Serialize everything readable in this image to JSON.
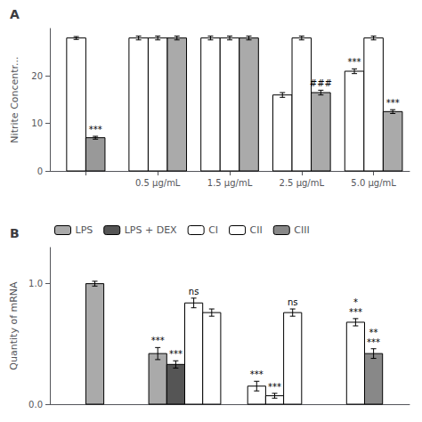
{
  "chart_data": [
    {
      "type": "bar",
      "title": "A",
      "ylabel": "Nitrite Concentr...",
      "categories": [
        null,
        "0.5 µg/mL",
        "1.5 µg/mL",
        "2.5 µg/mL",
        "5.0 µg/mL"
      ],
      "ylim": [
        0,
        30
      ],
      "yticks": [
        0,
        10,
        20
      ],
      "grid": false,
      "series": [
        {
          "color": "white",
          "values": [
            28,
            null,
            null,
            null,
            null
          ],
          "errors": [
            0.3,
            null,
            null,
            null,
            null
          ]
        },
        {
          "color": "#999999",
          "values": [
            7,
            null,
            null,
            null,
            null
          ],
          "errors": [
            0.3,
            null,
            null,
            null,
            null
          ],
          "annotations": [
            [
              "***"
            ],
            null,
            null,
            null,
            null
          ]
        },
        {
          "color": "white",
          "values": [
            null,
            28,
            28,
            16.0,
            21.0
          ],
          "errors": [
            null,
            0.4,
            0.4,
            0.5,
            0.5
          ],
          "annotations": [
            null,
            null,
            null,
            null,
            [
              "***"
            ]
          ]
        },
        {
          "color": "white",
          "values": [
            null,
            28,
            28,
            28.0,
            28.0
          ],
          "errors": [
            null,
            0.4,
            0.4,
            0.4,
            0.4
          ]
        },
        {
          "color": "#aaaaaa",
          "values": [
            null,
            28,
            28,
            16.5,
            12.5
          ],
          "errors": [
            null,
            0.4,
            0.4,
            0.5,
            0.4
          ],
          "annotations": [
            null,
            null,
            null,
            [
              "###"
            ],
            [
              "***"
            ]
          ]
        }
      ]
    },
    {
      "type": "bar",
      "title": "B",
      "ylabel": "Quantity of mRNA",
      "categories": [
        null,
        null,
        null,
        null
      ],
      "ylim": [
        0,
        1.3
      ],
      "yticks": [
        {
          "value": 0,
          "label": "0.0"
        },
        {
          "value": 1,
          "label": "1.0"
        }
      ],
      "grid": false,
      "tick_labels": "y",
      "legend": "upper left",
      "series": [
        {
          "name": "LPS",
          "color": "#aaaaaa",
          "values": [
            1.0,
            0.42,
            null,
            null
          ],
          "errors": [
            0.02,
            0.05,
            null,
            null
          ],
          "annotations": [
            null,
            [
              "***"
            ],
            null,
            null
          ]
        },
        {
          "name": "LPS + DEX",
          "color": "#555555",
          "values": [
            null,
            0.33,
            null,
            null
          ],
          "errors": [
            null,
            0.03,
            null,
            null
          ],
          "annotations": [
            null,
            [
              "***"
            ],
            null,
            null
          ]
        },
        {
          "name": "CI",
          "color": "white",
          "values": [
            null,
            0.84,
            0.15,
            null
          ],
          "errors": [
            null,
            0.04,
            0.04,
            null
          ],
          "annotations": [
            null,
            [
              "ns"
            ],
            [
              "***"
            ],
            null
          ]
        },
        {
          "name": "CII",
          "color": "white",
          "values": [
            null,
            0.76,
            0.07,
            0.68
          ],
          "errors": [
            null,
            0.03,
            0.02,
            0.03
          ],
          "annotations": [
            null,
            null,
            [
              "***"
            ],
            [
              "*",
              "***"
            ]
          ]
        },
        {
          "name": "CII",
          "color": "white",
          "values": [
            null,
            null,
            0.76,
            null
          ],
          "errors": [
            null,
            null,
            0.03,
            null
          ],
          "annotations": [
            null,
            null,
            [
              "ns"
            ],
            null
          ]
        },
        {
          "name": "CIII",
          "color": "#888888",
          "values": [
            null,
            null,
            null,
            0.42
          ],
          "errors": [
            null,
            null,
            null,
            0.04
          ],
          "annotations": [
            null,
            null,
            null,
            [
              "**",
              "***"
            ]
          ]
        }
      ]
    }
  ]
}
